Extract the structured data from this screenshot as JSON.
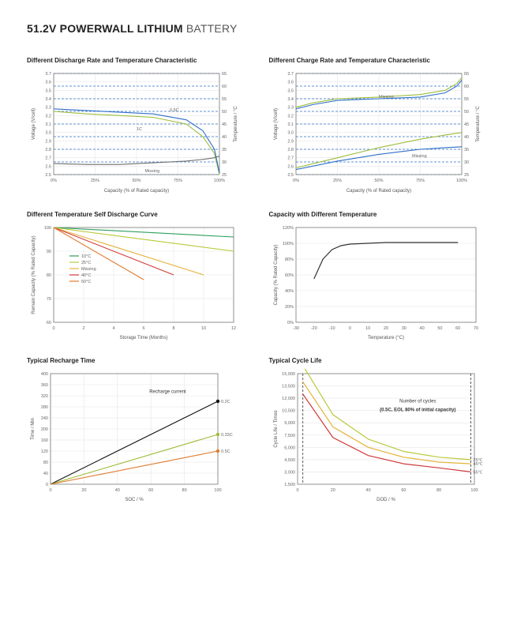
{
  "title_strong": "51.2V POWERWALL LITHIUM",
  "title_light": " BATTERY",
  "chart1": {
    "title": "Different Discharge Rate and Temperature Characteristic",
    "y1_label": "Voltage  (V/cell)",
    "y2_label": "Temperature / °C",
    "x_label": "Capacity  (% of Rated capacity)",
    "x_ticks": [
      "0%",
      "25%",
      "50%",
      "75%",
      "100%"
    ],
    "y1_ticks": [
      "2.5",
      "2.6",
      "2.7",
      "2.8",
      "2.9",
      "3.0",
      "3.1",
      "3.2",
      "3.3",
      "3.4",
      "3.5",
      "3.6",
      "3.7"
    ],
    "y2_ticks": [
      "25",
      "30",
      "35",
      "40",
      "45",
      "50",
      "55",
      "60",
      "65"
    ],
    "series": {
      "green": {
        "color": "#9dbd3a",
        "label": "1C",
        "pts": [
          [
            0,
            3.25
          ],
          [
            20,
            3.22
          ],
          [
            40,
            3.2
          ],
          [
            60,
            3.18
          ],
          [
            80,
            3.1
          ],
          [
            90,
            2.95
          ],
          [
            97,
            2.75
          ],
          [
            100,
            2.5
          ]
        ]
      },
      "blue": {
        "color": "#2d6fc9",
        "label": "0.5C",
        "pts": [
          [
            0,
            3.28
          ],
          [
            20,
            3.26
          ],
          [
            40,
            3.24
          ],
          [
            60,
            3.22
          ],
          [
            80,
            3.15
          ],
          [
            90,
            3.02
          ],
          [
            97,
            2.8
          ],
          [
            100,
            2.52
          ]
        ]
      },
      "miss": {
        "color": "#6e6e6e",
        "label": "Missing",
        "pts": [
          [
            0,
            2.63
          ],
          [
            20,
            2.62
          ],
          [
            40,
            2.62
          ],
          [
            60,
            2.64
          ],
          [
            80,
            2.66
          ],
          [
            90,
            2.68
          ],
          [
            97,
            2.7
          ],
          [
            100,
            2.72
          ]
        ]
      }
    },
    "legend_0p5c": "0.5C",
    "legend_miss": "Missing",
    "legend_1c": "1C"
  },
  "chart2": {
    "title": "Different  Charge Rate and Temperature Characteristic",
    "y1_label": "Voltage  (V/cell)",
    "y2_label": "Temperature / °C",
    "x_label": "Capacity  (% of Rated capacity)",
    "x_ticks": [
      "0%",
      "25%",
      "50%",
      "75%",
      "100%"
    ],
    "y1_ticks": [
      "2.5",
      "2.6",
      "2.7",
      "2.8",
      "2.9",
      "3.0",
      "3.1",
      "3.2",
      "3.3",
      "3.4",
      "3.5",
      "3.6",
      "3.7"
    ],
    "y2_ticks": [
      "25",
      "30",
      "35",
      "40",
      "45",
      "50",
      "55",
      "60",
      "65"
    ],
    "series": {
      "green_top": {
        "color": "#9dbd3a",
        "pts": [
          [
            0,
            3.3
          ],
          [
            10,
            3.35
          ],
          [
            25,
            3.4
          ],
          [
            50,
            3.42
          ],
          [
            75,
            3.45
          ],
          [
            90,
            3.5
          ],
          [
            97,
            3.58
          ],
          [
            100,
            3.65
          ]
        ]
      },
      "blue_top": {
        "color": "#2d6fc9",
        "pts": [
          [
            0,
            3.28
          ],
          [
            10,
            3.33
          ],
          [
            25,
            3.38
          ],
          [
            50,
            3.4
          ],
          [
            75,
            3.42
          ],
          [
            90,
            3.47
          ],
          [
            97,
            3.55
          ],
          [
            100,
            3.62
          ]
        ]
      },
      "green_bot": {
        "color": "#9dbd3a",
        "pts": [
          [
            0,
            2.58
          ],
          [
            25,
            2.7
          ],
          [
            50,
            2.82
          ],
          [
            75,
            2.92
          ],
          [
            90,
            2.97
          ],
          [
            100,
            3.0
          ]
        ]
      },
      "blue_bot": {
        "color": "#2d6fc9",
        "pts": [
          [
            0,
            2.56
          ],
          [
            25,
            2.66
          ],
          [
            50,
            2.74
          ],
          [
            75,
            2.8
          ],
          [
            90,
            2.82
          ],
          [
            100,
            2.83
          ]
        ]
      }
    },
    "label_miss": "Missing",
    "label_mark": "Missing"
  },
  "chart3": {
    "title": "Different Temperature Self Discharge Curve",
    "y_label": "Remain Capacity (% Rated Capacity)",
    "x_label": "Storage Time (Months)",
    "x_ticks": [
      "0",
      "2",
      "4",
      "6",
      "8",
      "10",
      "12"
    ],
    "y_ticks": [
      "60",
      "70",
      "80",
      "90",
      "100"
    ],
    "series": [
      {
        "color": "#2d9f5a",
        "label": "10°C",
        "pts": [
          [
            0,
            100
          ],
          [
            12,
            96
          ]
        ]
      },
      {
        "color": "#b9c93a",
        "label": "25°C",
        "pts": [
          [
            0,
            100
          ],
          [
            12,
            90
          ]
        ]
      },
      {
        "color": "#e6b33a",
        "label": "Missing",
        "pts": [
          [
            0,
            100
          ],
          [
            10,
            80
          ]
        ]
      },
      {
        "color": "#d13a3a",
        "label": "40°C",
        "pts": [
          [
            0,
            100
          ],
          [
            8,
            80
          ]
        ]
      },
      {
        "color": "#e07a2d",
        "label": "50°C",
        "pts": [
          [
            0,
            100
          ],
          [
            6,
            78
          ]
        ]
      }
    ]
  },
  "chart4": {
    "title": "Capacity with Different Temperature",
    "y_label": "Capacity (% Rated Capacity)",
    "x_label": "Temperature (°C)",
    "x_ticks": [
      "-30",
      "-20",
      "-10",
      "0",
      "10",
      "20",
      "30",
      "40",
      "50",
      "60",
      "70"
    ],
    "y_ticks": [
      "0%",
      "20%",
      "40%",
      "60%",
      "80%",
      "100%",
      "120%"
    ],
    "series": {
      "color": "#333",
      "pts": [
        [
          -20,
          55
        ],
        [
          -15,
          80
        ],
        [
          -10,
          92
        ],
        [
          -5,
          97
        ],
        [
          0,
          99
        ],
        [
          10,
          100
        ],
        [
          20,
          101
        ],
        [
          30,
          101
        ],
        [
          40,
          101
        ],
        [
          50,
          101
        ],
        [
          60,
          101
        ]
      ]
    }
  },
  "chart5": {
    "title": "Typical Recharge Time",
    "y_label": "Time / Min",
    "x_label": "SOC / %",
    "x_ticks": [
      "0",
      "20",
      "40",
      "60",
      "80",
      "100"
    ],
    "y_ticks": [
      "0",
      "40",
      "80",
      "120",
      "160",
      "200",
      "240",
      "280",
      "320",
      "360",
      "400"
    ],
    "annotation": "Recharge current",
    "series": [
      {
        "color": "#111",
        "marker": "#111",
        "end_label": "0.2C",
        "pts": [
          [
            0,
            0
          ],
          [
            100,
            300
          ]
        ]
      },
      {
        "color": "#9dbd3a",
        "marker": "#9dbd3a",
        "end_label": "0.33C",
        "pts": [
          [
            0,
            0
          ],
          [
            100,
            180
          ]
        ]
      },
      {
        "color": "#e07a2d",
        "marker": "#e07a2d",
        "end_label": "0.5C",
        "pts": [
          [
            0,
            0
          ],
          [
            100,
            120
          ]
        ]
      }
    ]
  },
  "chart6": {
    "title": "Typical Cycle Life",
    "y_label": "Cycle Life / Times",
    "x_label": "DOD / %",
    "x_ticks": [
      "0",
      "20",
      "40",
      "60",
      "80",
      "100"
    ],
    "y_ticks": [
      "1,500",
      "3,000",
      "4,500",
      "6,000",
      "7,500",
      "9,000",
      "10,500",
      "12,000",
      "13,500",
      "15,000"
    ],
    "note1": "Number of cycles",
    "note2": "(0.5C, EOL 80% of initial capacity)",
    "series": [
      {
        "color": "#b9c93a",
        "label": "25°C",
        "pts": [
          [
            3,
            16000
          ],
          [
            20,
            10000
          ],
          [
            40,
            7000
          ],
          [
            60,
            5500
          ],
          [
            80,
            4800
          ],
          [
            98,
            4500
          ]
        ]
      },
      {
        "color": "#e6b33a",
        "label": "45°C",
        "pts": [
          [
            3,
            14000
          ],
          [
            20,
            8500
          ],
          [
            40,
            6000
          ],
          [
            60,
            4800
          ],
          [
            80,
            4200
          ],
          [
            98,
            4000
          ]
        ]
      },
      {
        "color": "#d13a3a",
        "label": "55°C",
        "pts": [
          [
            3,
            12500
          ],
          [
            20,
            7200
          ],
          [
            40,
            5000
          ],
          [
            60,
            4000
          ],
          [
            80,
            3500
          ],
          [
            98,
            3000
          ]
        ]
      }
    ]
  }
}
